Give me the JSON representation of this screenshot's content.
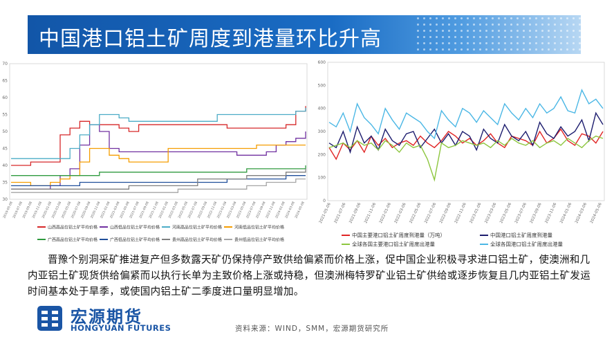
{
  "header": {
    "title": "中国港口铝土矿周度到港量环比升高"
  },
  "body": {
    "paragraph": "晋豫个别洞采矿推进复产但多数露天矿仍保持停产致供给偏紧而价格上涨，促中国企业积极寻求进口铝土矿，使澳洲和几内亚铝土矿现货供给偏紧而以执行长单为主致价格上涨或持稳，但澳洲梅特罗矿业铝土矿供给或逐步恢复且几内亚铝土矿发运时间基本处于旱季，或使国内铝土矿二季度进口量明显增加。"
  },
  "logo": {
    "cn": "宏源期货",
    "en": "HONGYUAN FUTURES"
  },
  "source": {
    "text": "资料来源：WIND，SMM，宏源期货研究所"
  },
  "chart_data": [
    {
      "type": "line",
      "title": "",
      "y_ticks": [
        "70",
        "65",
        "60",
        "55",
        "50",
        "45",
        "40",
        "35",
        "30"
      ],
      "x_ticks": [
        "2019-05-08",
        "2019-07-08",
        "2019-09-08",
        "2019-11-08",
        "2020-01-08",
        "2020-03-08",
        "2020-05-08",
        "2020-07-08",
        "2020-09-08",
        "2020-11-08",
        "2021-01-08",
        "2021-03-08",
        "2021-05-08",
        "2021-07-08",
        "2021-09-08",
        "2021-11-08",
        "2022-01-08",
        "2022-03-08",
        "2022-05-08",
        "2022-07-08",
        "2022-09-08",
        "2022-11-08",
        "2023-01-08",
        "2023-03-08",
        "2023-05-08",
        "2023-07-08",
        "2023-09-08",
        "2023-11-08",
        "2024-01-08",
        "2024-03-08",
        "2024-05-08"
      ],
      "series": [
        {
          "name": "山西高品位铝土矿平均价格",
          "color": "#d62728",
          "values": [
            40,
            40,
            41,
            41,
            41,
            49,
            51,
            53,
            52,
            52,
            52,
            51,
            50,
            52,
            52,
            52,
            52,
            52,
            52,
            52,
            52,
            52,
            51,
            51,
            51,
            51,
            51,
            51,
            52,
            56,
            57.5
          ]
        },
        {
          "name": "山西低品位铝土矿平均价格",
          "color": "#7030a0",
          "values": [
            33,
            33,
            33,
            33,
            34,
            37,
            39,
            46,
            52,
            50,
            45,
            44,
            44,
            44,
            44,
            44,
            44,
            44,
            44,
            44,
            44,
            44,
            44,
            43,
            43,
            43,
            44,
            46,
            47,
            48,
            50
          ]
        },
        {
          "name": "河南高品位铝土矿平均价格",
          "color": "#4bacc6",
          "values": [
            42,
            42,
            42,
            42,
            42,
            42,
            45,
            49,
            52,
            55,
            55,
            54,
            53,
            53,
            53,
            53,
            53,
            53,
            53,
            53,
            53,
            55,
            55,
            55,
            55,
            55,
            55,
            55,
            55,
            56,
            57
          ]
        },
        {
          "name": "河南低品位铝土矿平均价格",
          "color": "#f59d00",
          "values": [
            35,
            35,
            34,
            34,
            35,
            36,
            37,
            41,
            45,
            45,
            43,
            42,
            41,
            41,
            41,
            41,
            45,
            45,
            45,
            45,
            45,
            45,
            45,
            45,
            45,
            46,
            46,
            46,
            46,
            46,
            46
          ]
        },
        {
          "name": "广西高品位铝土矿平均价格",
          "color": "#2e9a3e",
          "values": [
            37,
            37,
            37,
            37,
            37,
            37,
            37,
            37,
            37,
            38,
            38,
            38,
            38,
            38,
            38,
            38,
            38,
            38,
            38,
            38,
            38,
            38,
            38,
            38,
            39,
            39,
            39,
            39,
            39,
            39,
            40
          ]
        },
        {
          "name": "广西低品位铝土矿平均价格",
          "color": "#1f4e9a",
          "values": [
            34,
            34,
            34,
            34,
            34,
            34,
            34,
            35,
            35,
            35,
            35,
            35,
            35,
            35,
            35,
            35,
            35,
            35,
            35,
            35,
            35,
            35,
            36,
            36,
            36,
            36,
            36,
            36,
            37,
            37,
            37
          ]
        },
        {
          "name": "贵州高品位铝土矿平均价格",
          "color": "#7f7f7f",
          "values": [
            33,
            33,
            33,
            33,
            33,
            33,
            33,
            33,
            33,
            33,
            33,
            33,
            34,
            34,
            34,
            34,
            34,
            34,
            34,
            36,
            36,
            36,
            36,
            36,
            37,
            37,
            37,
            37,
            38,
            38,
            39
          ]
        },
        {
          "name": "贵州低品位铝土矿平均价格",
          "color": "#a5a5a5",
          "values": [
            32,
            32,
            32,
            32,
            32,
            32,
            32,
            32,
            32,
            32,
            32,
            32,
            32,
            32,
            32,
            32,
            32,
            33,
            33,
            33,
            33,
            33,
            33,
            33,
            34,
            34,
            35,
            35,
            35,
            36,
            36
          ]
        }
      ],
      "ylim": [
        30,
        70
      ],
      "legend": "bottom"
    },
    {
      "type": "line",
      "title": "",
      "y_ticks": [
        "600",
        "500",
        "400",
        "300",
        "200",
        "100",
        "0"
      ],
      "x_ticks": [
        "2021-05-06",
        "2021-07-06",
        "2021-09-06",
        "2021-11-06",
        "2022-01-06",
        "2022-03-06",
        "2022-05-06",
        "2022-07-06",
        "2022-09-06",
        "2022-11-06",
        "2023-01-06",
        "2023-03-06",
        "2023-05-06",
        "2023-07-06",
        "2023-09-06",
        "2023-11-06",
        "2024-01-06",
        "2024-03-06",
        "2024-05-06"
      ],
      "series": [
        {
          "name": "中国主要港口铝土矿周度到港量（万吨）",
          "color": "#e02424",
          "values": [
            230,
            180,
            250,
            220,
            260,
            210,
            280,
            240,
            270,
            230,
            250,
            260,
            240,
            280,
            250,
            230,
            260,
            300,
            280,
            250,
            270,
            240,
            260,
            290,
            250,
            230,
            280,
            270,
            260,
            240,
            300,
            250,
            270,
            310,
            260,
            240,
            290,
            280,
            250,
            300
          ]
        },
        {
          "name": "中国港口铝土矿周度到港量",
          "color": "#1c1c6e",
          "values": [
            250,
            230,
            300,
            210,
            320,
            250,
            280,
            220,
            310,
            260,
            240,
            290,
            300,
            230,
            270,
            310,
            250,
            290,
            240,
            300,
            280,
            220,
            310,
            270,
            250,
            330,
            280,
            260,
            300,
            240,
            340,
            290,
            270,
            320,
            280,
            300,
            350,
            260,
            380,
            330
          ]
        },
        {
          "name": "全球各国主要港口铝土矿周度出港量",
          "color": "#8dc63f",
          "values": [
            230,
            240,
            250,
            230,
            260,
            240,
            250,
            220,
            260,
            240,
            210,
            250,
            230,
            240,
            180,
            90,
            250,
            230,
            240,
            260,
            250,
            240,
            250,
            230,
            260,
            240,
            270,
            250,
            240,
            260,
            230,
            250,
            260,
            240,
            270,
            250,
            230,
            260,
            280,
            270
          ]
        },
        {
          "name": "全球各国港口铝土矿周度出港量",
          "color": "#4bb7e5",
          "values": [
            340,
            320,
            380,
            300,
            420,
            360,
            330,
            290,
            400,
            350,
            310,
            380,
            360,
            340,
            300,
            270,
            390,
            350,
            320,
            400,
            380,
            340,
            390,
            360,
            330,
            420,
            380,
            350,
            400,
            360,
            420,
            380,
            400,
            450,
            390,
            380,
            480,
            420,
            440,
            400
          ]
        }
      ],
      "ylim": [
        0,
        600
      ],
      "legend": "bottom"
    }
  ]
}
